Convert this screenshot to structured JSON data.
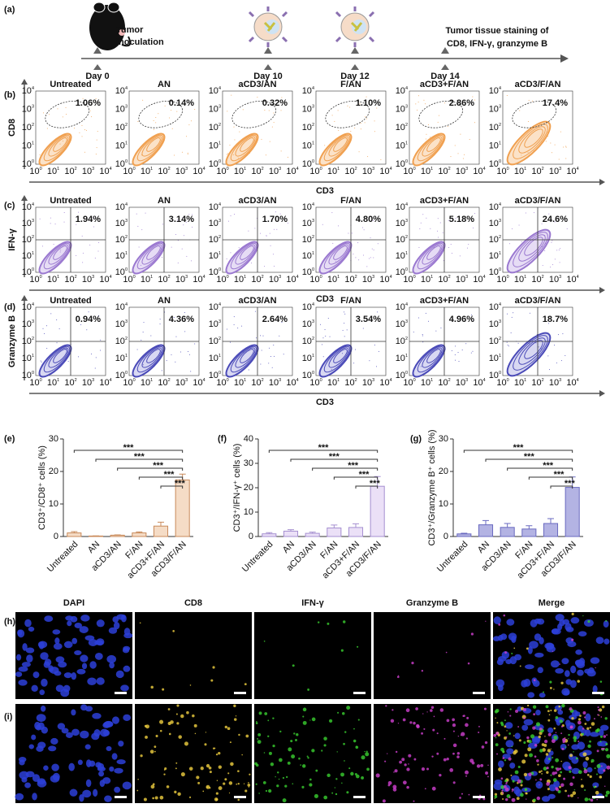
{
  "panel_labels": [
    "(a)",
    "(b)",
    "(c)",
    "(d)",
    "(e)",
    "(f)",
    "(g)",
    "(h)",
    "(i)"
  ],
  "timeline": {
    "days": [
      "Day 0",
      "Day 10",
      "Day 12",
      "Day 14"
    ],
    "inoculation": [
      "Tumor",
      "inoculation"
    ],
    "staining": [
      "Tumor tissue staining of",
      "CD8, IFN-γ, granzyme B"
    ]
  },
  "flow": {
    "groups": [
      "Untreated",
      "AN",
      "aCD3/AN",
      "F/AN",
      "aCD3+F/AN",
      "aCD3/F/AN"
    ],
    "x_label": "CD3",
    "ticks": [
      {
        "base": "10",
        "exp": "0"
      },
      {
        "base": "10",
        "exp": "1"
      },
      {
        "base": "10",
        "exp": "2"
      },
      {
        "base": "10",
        "exp": "3"
      },
      {
        "base": "10",
        "exp": "4"
      }
    ],
    "rows": [
      {
        "y_label": "CD8",
        "percents": [
          "1.06%",
          "0.14%",
          "0.32%",
          "1.10%",
          "2.86%",
          "17.4%"
        ]
      },
      {
        "y_label": "IFN-γ",
        "percents": [
          "1.94%",
          "3.14%",
          "1.70%",
          "4.80%",
          "5.18%",
          "24.6%"
        ]
      },
      {
        "y_label": "Granzyme B",
        "percents": [
          "0.94%",
          "4.36%",
          "2.64%",
          "3.54%",
          "4.96%",
          "18.7%"
        ]
      }
    ]
  },
  "chart_data": [
    {
      "type": "bar",
      "ylabel": "CD3⁺/CD8⁺ cells (%)",
      "categories": [
        "Untreated",
        "AN",
        "aCD3/AN",
        "F/AN",
        "aCD3+F/AN",
        "aCD3/F/AN"
      ],
      "values": [
        1.1,
        0.15,
        0.4,
        1.1,
        3.2,
        17.4
      ],
      "errors": [
        0.4,
        0.05,
        0.1,
        0.3,
        1.2,
        1.8
      ],
      "color": "#f5dcc6",
      "edge_color": "#c98a5a",
      "ylim": [
        0,
        30
      ],
      "yticks": [
        0,
        10,
        20,
        30
      ],
      "brackets": [
        {
          "label": "***",
          "from": "Untreated",
          "to": "aCD3/F/AN"
        },
        {
          "label": "***",
          "from": "AN",
          "to": "aCD3/F/AN"
        },
        {
          "label": "***",
          "from": "aCD3/AN",
          "to": "aCD3/F/AN"
        },
        {
          "label": "***",
          "from": "F/AN",
          "to": "aCD3/F/AN"
        },
        {
          "label": "***",
          "from": "aCD3+F/AN",
          "to": "aCD3/F/AN"
        }
      ]
    },
    {
      "type": "bar",
      "ylabel": "CD3⁺/IFN-γ⁺ cells (%)",
      "categories": [
        "Untreated",
        "AN",
        "aCD3/AN",
        "F/AN",
        "aCD3+F/AN",
        "aCD3/F/AN"
      ],
      "values": [
        1.1,
        2.2,
        1.3,
        3.5,
        3.7,
        20.6
      ],
      "errors": [
        0.5,
        0.6,
        0.5,
        1.2,
        1.5,
        4
      ],
      "color": "#ebe0f7",
      "edge_color": "#a58fd0",
      "ylim": [
        0,
        40
      ],
      "yticks": [
        0,
        10,
        20,
        30,
        40
      ],
      "brackets": [
        {
          "label": "***",
          "from": "Untreated",
          "to": "aCD3/F/AN"
        },
        {
          "label": "***",
          "from": "AN",
          "to": "aCD3/F/AN"
        },
        {
          "label": "***",
          "from": "aCD3/AN",
          "to": "aCD3/F/AN"
        },
        {
          "label": "***",
          "from": "F/AN",
          "to": "aCD3/F/AN"
        },
        {
          "label": "***",
          "from": "aCD3+F/AN",
          "to": "aCD3/F/AN"
        }
      ]
    },
    {
      "type": "bar",
      "ylabel": "CD3⁺/Granzyme B⁺ cells (%)",
      "categories": [
        "Untreated",
        "AN",
        "aCD3/AN",
        "F/AN",
        "aCD3+F/AN",
        "aCD3/F/AN"
      ],
      "values": [
        0.8,
        3.6,
        2.8,
        2.3,
        4,
        15.1
      ],
      "errors": [
        0.2,
        1.3,
        1.2,
        1,
        1.5,
        3.2
      ],
      "color": "#b3b3e3",
      "edge_color": "#6a6ac0",
      "ylim": [
        0,
        30
      ],
      "yticks": [
        0,
        10,
        20,
        30
      ],
      "brackets": [
        {
          "label": "***",
          "from": "Untreated",
          "to": "aCD3/F/AN"
        },
        {
          "label": "***",
          "from": "AN",
          "to": "aCD3/F/AN"
        },
        {
          "label": "***",
          "from": "aCD3/AN",
          "to": "aCD3/F/AN"
        },
        {
          "label": "***",
          "from": "F/AN",
          "to": "aCD3/F/AN"
        },
        {
          "label": "***",
          "from": "aCD3+F/AN",
          "to": "aCD3/F/AN"
        }
      ]
    }
  ],
  "images": {
    "columns": [
      "DAPI",
      "CD8",
      "IFN-γ",
      "Granzyme B",
      "Merge"
    ]
  }
}
